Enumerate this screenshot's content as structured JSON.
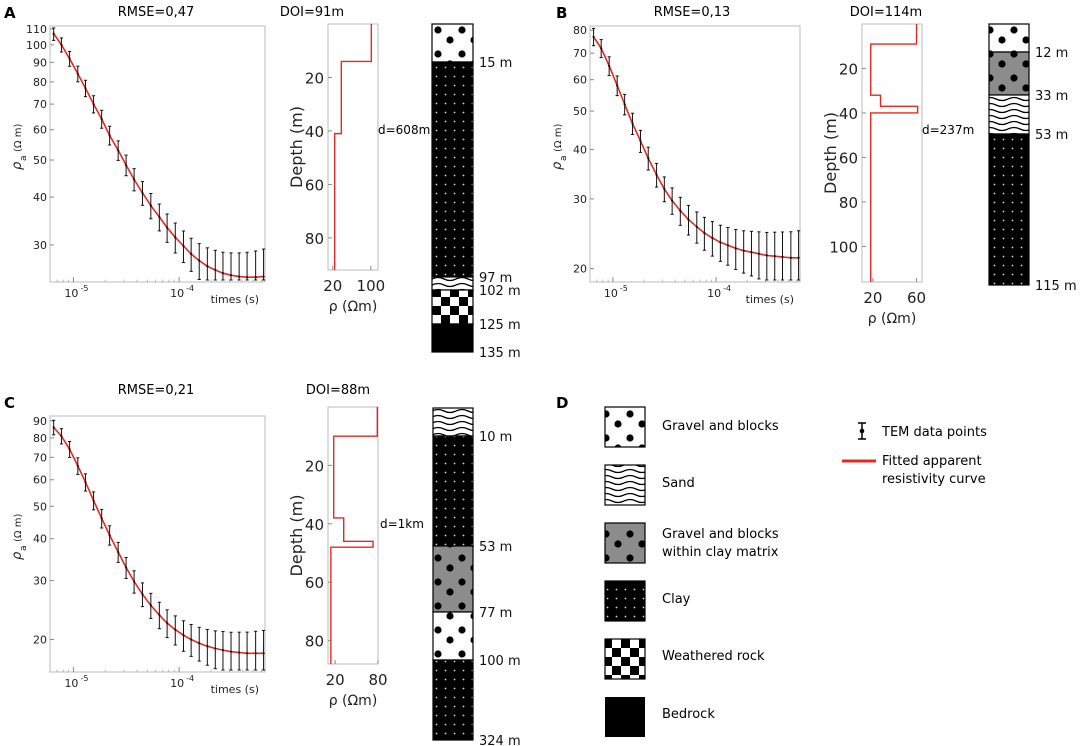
{
  "panels": [
    {
      "id": "A",
      "rmse": "RMSE=0,47",
      "doi": "DOI=91m",
      "distance": "d=608m",
      "yaxis_label": "ρ",
      "yaxis_sub": "a",
      "yaxis_unit": "(Ω m)",
      "xaxis_label": "times (s)",
      "model_xlabel": "ρ (Ωm)",
      "model_ylabel": "Depth (m)",
      "time_ticks": [
        {
          "t": 1e-05,
          "label": "10"
        },
        {
          "t": 0.0001,
          "label": "10"
        }
      ],
      "time_tick_exp": "-5|-4",
      "rho_ticks": [
        30,
        40,
        50,
        60,
        70,
        80,
        90,
        100,
        110
      ],
      "depth_ticks": [
        20,
        40,
        60,
        80
      ],
      "model_rho_ticks": [
        20,
        100
      ],
      "column_labels": [
        "15 m",
        "97 m",
        "102 m",
        "125 m",
        "135 m"
      ]
    },
    {
      "id": "B",
      "rmse": "RMSE=0,13",
      "doi": "DOI=114m",
      "distance": "d=237m",
      "yaxis_label": "ρ",
      "yaxis_sub": "a",
      "yaxis_unit": "(Ω m)",
      "xaxis_label": "times (s)",
      "model_xlabel": "ρ (Ωm)",
      "model_ylabel": "Depth (m)",
      "rho_ticks": [
        20,
        30,
        40,
        50,
        60,
        70,
        80
      ],
      "depth_ticks": [
        20,
        40,
        60,
        80,
        100
      ],
      "model_rho_ticks": [
        20,
        60
      ],
      "column_labels": [
        "12 m",
        "33 m",
        "53 m",
        "115 m"
      ]
    },
    {
      "id": "C",
      "rmse": "RMSE=0,21",
      "doi": "DOI=88m",
      "distance": "d=1km",
      "yaxis_label": "ρ",
      "yaxis_sub": "a",
      "yaxis_unit": "(Ω m)",
      "xaxis_label": "times (s)",
      "model_xlabel": "ρ (Ωm)",
      "model_ylabel": "Depth (m)",
      "rho_ticks": [
        20,
        30,
        40,
        50,
        60,
        70,
        80,
        90
      ],
      "depth_ticks": [
        20,
        40,
        60,
        80
      ],
      "model_rho_ticks": [
        20,
        80
      ],
      "column_labels": [
        "10 m",
        "53 m",
        "77 m",
        "100 m",
        "324 m"
      ]
    }
  ],
  "time_tick_base": "10",
  "time_tick_exps": [
    "-5",
    "-4"
  ],
  "legend": {
    "panel_id": "D",
    "items": [
      {
        "key": "gravel",
        "label": "Gravel and blocks"
      },
      {
        "key": "sand",
        "label": "Sand"
      },
      {
        "key": "gravel_clay",
        "label_line1": "Gravel and blocks",
        "label_line2": "within clay matrix"
      },
      {
        "key": "clay",
        "label": "Clay"
      },
      {
        "key": "weathered",
        "label": "Weathered rock"
      },
      {
        "key": "bedrock",
        "label": "Bedrock"
      }
    ],
    "tem_label": "TEM data points",
    "curve_label_line1": "Fitted apparent",
    "curve_label_line2": "resistivity curve",
    "curve_color": "#e8281f"
  },
  "chart_data": [
    {
      "type": "line",
      "title": "RMSE=0,47",
      "xlabel": "times (s)",
      "ylabel": "ρa (Ω m)",
      "xscale": "log",
      "yscale": "log",
      "xlim": [
        6e-06,
        0.00065
      ],
      "ylim": [
        24,
        112
      ],
      "series": [
        {
          "name": "Fitted apparent resistivity curve",
          "x": [
            6.5e-06,
            7.7e-06,
            9.2e-06,
            1.1e-05,
            1.3e-05,
            1.55e-05,
            1.85e-05,
            2.2e-05,
            2.65e-05,
            3.15e-05,
            3.75e-05,
            4.5e-05,
            5.4e-05,
            6.5e-05,
            7.7e-05,
            9.2e-05,
            0.00011,
            0.00013,
            0.000155,
            0.000185,
            0.00022,
            0.00026,
            0.00031,
            0.00037,
            0.00044,
            0.00053,
            0.00063
          ],
          "y": [
            107,
            100,
            92,
            84,
            77,
            70,
            64,
            58,
            53,
            48.5,
            44.5,
            41,
            38,
            35.5,
            33.3,
            31.4,
            29.8,
            28.4,
            27.3,
            26.4,
            25.8,
            25.3,
            25,
            24.8,
            24.7,
            24.7,
            24.8
          ]
        }
      ],
      "error_bar_relative": [
        0.04,
        0.06,
        0.1,
        0.18
      ]
    },
    {
      "type": "line",
      "title": "RMSE=0,13",
      "xlabel": "times (s)",
      "ylabel": "ρa (Ω m)",
      "xscale": "log",
      "yscale": "log",
      "xlim": [
        6e-06,
        0.00065
      ],
      "ylim": [
        18.5,
        82
      ],
      "series": [
        {
          "name": "Fitted apparent resistivity curve",
          "x": [
            6.5e-06,
            7.7e-06,
            9.2e-06,
            1.1e-05,
            1.3e-05,
            1.55e-05,
            1.85e-05,
            2.2e-05,
            2.65e-05,
            3.15e-05,
            3.75e-05,
            4.5e-05,
            5.4e-05,
            6.5e-05,
            7.7e-05,
            9.2e-05,
            0.00011,
            0.00013,
            0.000155,
            0.000185,
            0.00022,
            0.00026,
            0.00031,
            0.00037,
            0.00044,
            0.00053,
            0.00063
          ],
          "y": [
            77,
            72,
            65,
            58,
            52,
            46.5,
            42,
            38,
            34.5,
            31.8,
            29.7,
            28,
            26.6,
            25.5,
            24.6,
            23.9,
            23.3,
            22.9,
            22.5,
            22.2,
            22,
            21.8,
            21.6,
            21.5,
            21.4,
            21.3,
            21.3
          ]
        }
      ],
      "error_bar_relative": [
        0.05,
        0.07,
        0.11,
        0.17
      ]
    },
    {
      "type": "line",
      "title": "RMSE=0,21",
      "xlabel": "times (s)",
      "ylabel": "ρa (Ω m)",
      "xscale": "log",
      "yscale": "log",
      "xlim": [
        6e-06,
        0.00065
      ],
      "ylim": [
        16,
        93
      ],
      "series": [
        {
          "name": "Fitted apparent resistivity curve",
          "x": [
            6.5e-06,
            7.7e-06,
            9.2e-06,
            1.1e-05,
            1.3e-05,
            1.55e-05,
            1.85e-05,
            2.2e-05,
            2.65e-05,
            3.15e-05,
            3.75e-05,
            4.5e-05,
            5.4e-05,
            6.5e-05,
            7.7e-05,
            9.2e-05,
            0.00011,
            0.00013,
            0.000155,
            0.000185,
            0.00022,
            0.00026,
            0.00031,
            0.00037,
            0.00044,
            0.00053,
            0.00063
          ],
          "y": [
            86,
            81,
            74,
            66,
            59,
            52,
            46,
            41,
            36.5,
            32.8,
            29.8,
            27.3,
            25.3,
            23.7,
            22.4,
            21.4,
            20.6,
            20,
            19.5,
            19.1,
            18.8,
            18.6,
            18.4,
            18.3,
            18.2,
            18.2,
            18.2
          ]
        }
      ],
      "error_bar_relative": [
        0.05,
        0.07,
        0.11,
        0.17
      ]
    },
    {
      "type": "step",
      "title": "DOI=91m",
      "xlabel": "ρ (Ωm)",
      "ylabel": "Depth (m)",
      "xlim": [
        10,
        115
      ],
      "ylim": [
        92,
        0
      ],
      "layers": [
        {
          "top": 0,
          "bottom": 14,
          "rho": 101
        },
        {
          "top": 14,
          "bottom": 41,
          "rho": 38
        },
        {
          "top": 41,
          "bottom": 92,
          "rho": 24
        }
      ]
    },
    {
      "type": "step",
      "title": "DOI=114m",
      "xlabel": "ρ (Ωm)",
      "ylabel": "Depth (m)",
      "xlim": [
        10,
        65
      ],
      "ylim": [
        116,
        0
      ],
      "layers": [
        {
          "top": 0,
          "bottom": 9,
          "rho": 60
        },
        {
          "top": 9,
          "bottom": 32,
          "rho": 18
        },
        {
          "top": 32,
          "bottom": 37,
          "rho": 27
        },
        {
          "top": 37,
          "bottom": 40,
          "rho": 61
        },
        {
          "top": 40,
          "bottom": 116,
          "rho": 18
        }
      ]
    },
    {
      "type": "step",
      "title": "DOI=88m",
      "xlabel": "ρ (Ωm)",
      "ylabel": "Depth (m)",
      "xlim": [
        10,
        80
      ],
      "ylim": [
        88,
        0
      ],
      "layers": [
        {
          "top": 0,
          "bottom": 10,
          "rho": 79
        },
        {
          "top": 10,
          "bottom": 38,
          "rho": 18
        },
        {
          "top": 38,
          "bottom": 46,
          "rho": 32
        },
        {
          "top": 46,
          "bottom": 48,
          "rho": 73
        },
        {
          "top": 48,
          "bottom": 88,
          "rho": 14
        }
      ]
    },
    {
      "type": "table",
      "title": "Lithological columns",
      "columns": [
        {
          "panel": "A",
          "layers": [
            {
              "type": "gravel",
              "bottom_m": 15
            },
            {
              "type": "clay",
              "bottom_m": 97
            },
            {
              "type": "sand",
              "bottom_m": 102
            },
            {
              "type": "weathered",
              "bottom_m": 125
            },
            {
              "type": "bedrock",
              "bottom_m": 135
            }
          ]
        },
        {
          "panel": "B",
          "layers": [
            {
              "type": "gravel",
              "bottom_m": 12
            },
            {
              "type": "gravel_clay",
              "bottom_m": 33
            },
            {
              "type": "sand",
              "bottom_m": 53
            },
            {
              "type": "clay",
              "bottom_m": 115
            }
          ]
        },
        {
          "panel": "C",
          "layers": [
            {
              "type": "sand",
              "bottom_m": 10
            },
            {
              "type": "clay",
              "bottom_m": 53
            },
            {
              "type": "gravel_clay",
              "bottom_m": 77
            },
            {
              "type": "gravel",
              "bottom_m": 100
            },
            {
              "type": "clay",
              "bottom_m": 324
            }
          ]
        }
      ]
    }
  ]
}
